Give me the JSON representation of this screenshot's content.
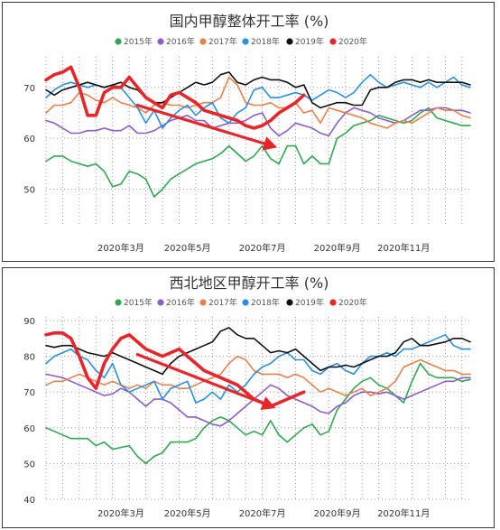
{
  "colors": {
    "2015年": "#2fa84f",
    "2016年": "#8e5cc8",
    "2017年": "#e8814a",
    "2018年": "#2a8fe0",
    "2019年": "#111111",
    "2020年": "#e8262a"
  },
  "chart_data": [
    {
      "type": "line",
      "title": "国内甲醇整体开工率 (%)",
      "ylim": [
        43,
        76
      ],
      "yticks": [
        50,
        60,
        70
      ],
      "xticks": [
        "2020年3月",
        "2020年5月",
        "2020年7月",
        "2020年9月",
        "2020年11月"
      ],
      "xtick_weeks": [
        9,
        17,
        26,
        35,
        43
      ],
      "week_count": 52,
      "grid": true,
      "legend_position": "top",
      "series": [
        {
          "name": "2015年",
          "values": [
            55.5,
            56.5,
            56.5,
            55.5,
            55,
            54.5,
            55,
            53.5,
            50.5,
            51,
            53.5,
            53,
            52,
            48.5,
            50,
            52,
            53,
            54,
            55,
            55.5,
            56,
            57,
            58.5,
            57,
            55.5,
            56.5,
            58.5,
            56,
            55,
            58.5,
            58.5,
            55,
            56.5,
            55,
            55,
            60,
            61,
            62.5,
            63,
            63.5,
            64.5,
            64,
            63.5,
            63,
            63.5,
            65,
            66,
            64,
            63.5,
            63,
            62.5,
            62.5
          ]
        },
        {
          "name": "2016年",
          "values": [
            63.5,
            63,
            62,
            61,
            61,
            61.5,
            61.5,
            62,
            61.5,
            61.5,
            62.5,
            61,
            61,
            61.5,
            62.5,
            63.5,
            64,
            64.5,
            63.5,
            63.5,
            62,
            62.5,
            63,
            63,
            63.5,
            64.5,
            65,
            62,
            60.5,
            61.5,
            63,
            62.5,
            62,
            61,
            60.5,
            63,
            65,
            66,
            65.5,
            65,
            64,
            63.5,
            63,
            63.5,
            64.5,
            65.5,
            65.5,
            66,
            66,
            65.5,
            65.5,
            65
          ]
        },
        {
          "name": "2017年",
          "values": [
            65,
            66.5,
            66.5,
            67,
            69,
            68.5,
            67.5,
            67,
            68,
            67,
            66.5,
            66,
            65,
            66.5,
            67,
            66.5,
            66.5,
            66,
            66.5,
            67,
            67,
            68,
            72,
            70.5,
            67,
            66.5,
            66.5,
            67,
            66,
            66,
            67,
            65,
            65.5,
            63,
            66,
            65.5,
            65,
            64.5,
            64,
            63,
            62.5,
            62,
            63,
            63.5,
            63,
            64,
            65,
            66,
            65.5,
            65.5,
            64.5,
            64
          ]
        },
        {
          "name": "2018年",
          "values": [
            68,
            69.5,
            70.5,
            71,
            70.5,
            70,
            70.5,
            70,
            70.5,
            70,
            68,
            66,
            63,
            65.5,
            62,
            64,
            65.5,
            66.5,
            64.5,
            66,
            67,
            64,
            63,
            65,
            66,
            69.5,
            70,
            68,
            68,
            68.5,
            69,
            68.5,
            67.5,
            68.5,
            69.5,
            69,
            68,
            69,
            71,
            72.5,
            71,
            70,
            70.5,
            71,
            70.5,
            70,
            71,
            70,
            71,
            72,
            70.5,
            70
          ]
        },
        {
          "name": "2019年",
          "values": [
            69.5,
            68.5,
            69.5,
            70,
            70.5,
            71,
            70.5,
            70,
            70.5,
            71,
            70,
            69.5,
            68,
            67,
            67,
            68,
            69,
            70,
            71,
            70.5,
            71,
            72.5,
            73,
            71,
            70.5,
            71.5,
            72,
            71.5,
            71.5,
            71,
            70,
            70.5,
            67,
            66,
            66.5,
            67,
            67,
            66.5,
            66.5,
            69.5,
            70,
            70,
            71,
            71.5,
            71.5,
            71,
            71.5,
            71,
            71,
            71,
            71,
            70.5
          ]
        },
        {
          "name": "2020年",
          "values": [
            71.5,
            72.5,
            73,
            74,
            70,
            64.5,
            64.5,
            69,
            70,
            70,
            72,
            70,
            68,
            67,
            66,
            68.5,
            69,
            68,
            67,
            65.5,
            65,
            64.5,
            64,
            63.5,
            62.5,
            62,
            62.5,
            63.5,
            65,
            66,
            67,
            68.5
          ]
        }
      ],
      "annotation": {
        "type": "arrow",
        "from_week": 11,
        "from_value": 66.5,
        "to_week": 27.8,
        "to_value": 58.2
      }
    },
    {
      "type": "line",
      "title": "西北地区甲醇开工率 (%)",
      "ylim": [
        40,
        91
      ],
      "yticks": [
        40,
        50,
        60,
        70,
        80,
        90
      ],
      "xticks": [
        "2020年3月",
        "2020年5月",
        "2020年7月",
        "2020年9月",
        "2020年11月"
      ],
      "xtick_weeks": [
        9,
        17,
        26,
        35,
        43
      ],
      "week_count": 52,
      "grid": true,
      "legend_position": "top",
      "series": [
        {
          "name": "2015年",
          "values": [
            60,
            59,
            58,
            57,
            57,
            57,
            55,
            56,
            54,
            54.5,
            55,
            52,
            50,
            52,
            53,
            56,
            56,
            56,
            57,
            60,
            62,
            63,
            62,
            60,
            58,
            59,
            58,
            62,
            58,
            56,
            58,
            60,
            61,
            58,
            59,
            65,
            68,
            71,
            73,
            74,
            72,
            71,
            69,
            67,
            73,
            78,
            75,
            74,
            74,
            74,
            73,
            73.5
          ]
        },
        {
          "name": "2016年",
          "values": [
            75,
            74.5,
            74,
            73,
            72,
            71,
            70,
            69,
            69.5,
            71,
            70,
            68,
            66,
            68,
            68,
            67,
            65,
            63,
            63,
            62,
            61,
            60.5,
            62,
            64,
            66,
            68,
            70,
            72,
            71,
            69,
            68,
            67,
            66,
            64.5,
            64,
            66,
            67,
            69,
            70,
            70,
            69.5,
            70,
            69,
            68,
            69,
            70,
            71,
            72,
            73,
            73,
            74,
            74
          ]
        },
        {
          "name": "2017年",
          "values": [
            72,
            73,
            73,
            74,
            75,
            74,
            73,
            72,
            73,
            72,
            71,
            72,
            71,
            73,
            72,
            72,
            71,
            71,
            72,
            73,
            74,
            75,
            78,
            80,
            79,
            76,
            75,
            75,
            75,
            74,
            75,
            74,
            72,
            70,
            71,
            70,
            69,
            70,
            71,
            69,
            70,
            71,
            73,
            77,
            78,
            79,
            78,
            77,
            76,
            76,
            75,
            75
          ]
        },
        {
          "name": "2018年",
          "values": [
            78,
            80,
            81,
            82,
            80,
            79,
            76,
            74,
            78,
            72,
            70,
            71,
            72,
            73,
            68,
            71,
            72,
            73,
            67,
            68,
            70,
            68,
            72,
            70,
            72,
            75,
            77,
            78,
            80,
            81,
            79,
            79,
            76,
            75,
            77,
            78,
            76,
            75,
            78,
            80,
            80,
            81,
            80,
            82,
            82,
            83,
            84,
            85,
            86,
            83,
            82,
            82
          ]
        },
        {
          "name": "2019年",
          "values": [
            83,
            82.5,
            83,
            83,
            82,
            81,
            80.5,
            80,
            81,
            80,
            79,
            78,
            77,
            76,
            75,
            78,
            80,
            81,
            82,
            83,
            84,
            87,
            88,
            86,
            85,
            85,
            83,
            81,
            81.5,
            81,
            82,
            80,
            78,
            76,
            77,
            77,
            77.5,
            77,
            78,
            79,
            80,
            80,
            81,
            84,
            85,
            83,
            83,
            83.5,
            84,
            85,
            85,
            84
          ]
        },
        {
          "name": "2020年",
          "values": [
            86,
            86.5,
            86.5,
            85,
            80,
            74,
            71,
            78,
            82,
            85,
            86,
            84,
            82,
            81,
            80,
            81,
            82,
            80,
            78,
            76,
            75,
            74,
            73,
            72,
            70,
            68,
            67,
            66,
            67,
            68,
            69,
            70
          ]
        }
      ],
      "annotation": {
        "type": "arrow",
        "from_week": 11,
        "from_value": 80.5,
        "to_week": 27.6,
        "to_value": 65.5
      }
    }
  ]
}
